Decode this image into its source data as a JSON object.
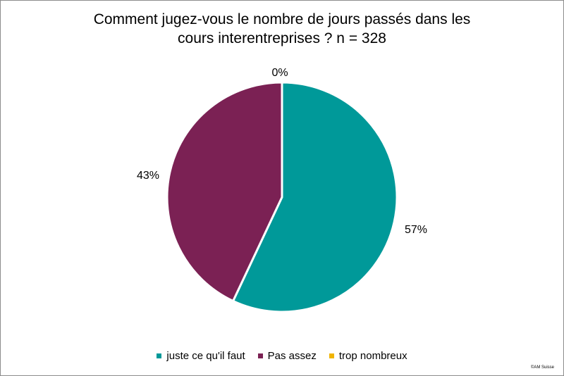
{
  "chart_data": {
    "type": "pie",
    "title_lines": [
      "Comment jugez-vous le nombre de jours passés dans les",
      "cours interentreprises ? n = 328"
    ],
    "slices": [
      {
        "name": "juste ce qu'il faut",
        "value": 57,
        "label": "57%",
        "color": "#009999"
      },
      {
        "name": "Pas assez",
        "value": 43,
        "label": "43%",
        "color": "#7b2154"
      },
      {
        "name": "trop nombreux",
        "value": 0,
        "label": "0%",
        "color": "#f0b400"
      }
    ],
    "legend_position": "bottom",
    "start_angle_deg": 0,
    "direction": "clockwise"
  },
  "footer": {
    "copyright": "©AM Suisse"
  }
}
